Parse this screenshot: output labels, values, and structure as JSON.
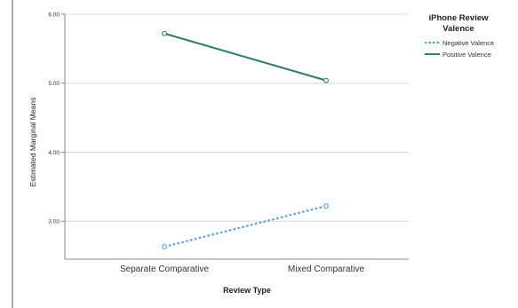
{
  "chart_data": {
    "type": "line",
    "categories": [
      "Separate Comparative",
      "Mixed Comparative"
    ],
    "series": [
      {
        "name": "Negative Valence",
        "values": [
          2.63,
          3.22
        ],
        "color": "#4aa3e8",
        "style": "dotted"
      },
      {
        "name": "Positive Valence",
        "values": [
          5.72,
          5.04
        ],
        "color": "#2f7c70",
        "style": "solid"
      }
    ],
    "xlabel": "Review Type",
    "ylabel": "Estimated Marginal Means",
    "ylim": [
      2.45,
      6.0
    ],
    "yticks": [
      "3.00",
      "4.00",
      "5.00",
      "6.00"
    ],
    "ytick_values": [
      3.0,
      4.0,
      5.0,
      6.0
    ],
    "grid": true,
    "legend_title_lines": [
      "iPhone Review",
      "Valence"
    ],
    "legend_placement": "right"
  }
}
